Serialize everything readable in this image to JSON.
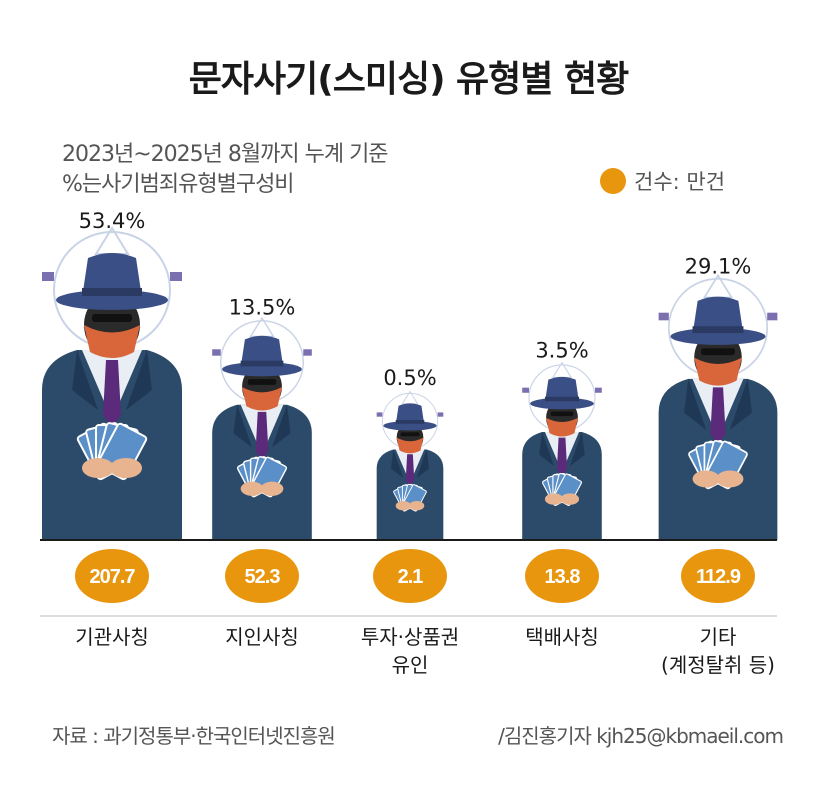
{
  "title": "문자사기(스미싱) 유형별 현황",
  "subtitle": {
    "line1": "2023년~2025년 8월까지 누계 기준",
    "line2": "%는사기범죄유형별구성비"
  },
  "legend": {
    "label": "건수: 만건"
  },
  "colors": {
    "accent": "#e8960e",
    "hat": "#3a4f86",
    "coat": "#2c4a6a",
    "mask": "#d9663a",
    "tie": "#5b2a7a",
    "money": "#5a8fc7",
    "baseline": "#1a1a1a",
    "divider": "#bbbbbb"
  },
  "chart_data": {
    "type": "bar",
    "title": "문자사기(스미싱) 유형별 현황",
    "categories": [
      [
        "기관사칭"
      ],
      [
        "지인사칭"
      ],
      [
        "투자·상품권",
        "유인"
      ],
      [
        "택배사칭"
      ],
      [
        "기타",
        "(계정탈취 등)"
      ]
    ],
    "series": [
      {
        "name": "건수 (만건)",
        "values": [
          207.7,
          52.3,
          2.1,
          13.8,
          112.9
        ]
      },
      {
        "name": "구성비",
        "values": [
          53.4,
          13.5,
          0.5,
          3.5,
          29.1
        ],
        "unit": "%"
      }
    ],
    "percent_labels": [
      "53.4%",
      "13.5%",
      "0.5%",
      "3.5%",
      "29.1%"
    ],
    "count_labels": [
      "207.7",
      "52.3",
      "2.1",
      "13.8",
      "112.9"
    ]
  },
  "footer": {
    "source": "자료 : 과기정통부·한국인터넷진흥원",
    "credit": "/김진홍기자 kjh25@kbmaeil.com"
  }
}
